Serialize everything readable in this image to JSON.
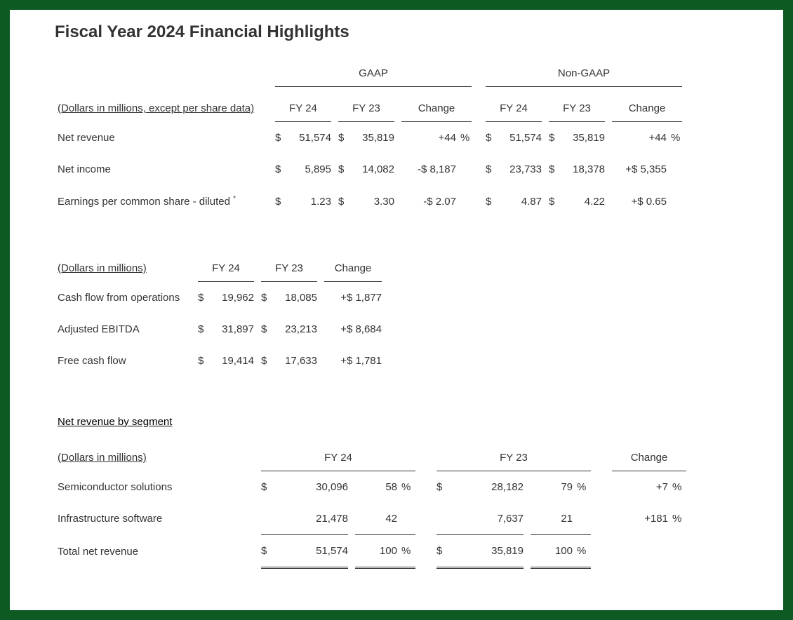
{
  "title": "Fiscal Year 2024 Financial Highlights",
  "colors": {
    "border": "#0e5a23",
    "text": "#333333",
    "rule": "#333333",
    "bg": "#ffffff"
  },
  "table1": {
    "note": "(Dollars in millions, except per share data)",
    "group_a": "GAAP",
    "group_b": "Non-GAAP",
    "cols": {
      "fy24": "FY 24",
      "fy23": "FY 23",
      "change": "Change"
    },
    "rows": [
      {
        "label": "Net revenue",
        "a": {
          "fy24": "51,574",
          "fy23": "35,819",
          "change": "+44",
          "suffix": "%"
        },
        "b": {
          "fy24": "51,574",
          "fy23": "35,819",
          "change": "+44",
          "suffix": "%"
        },
        "cur": "$"
      },
      {
        "label": "Net income",
        "a": {
          "fy24": "5,895",
          "fy23": "14,082",
          "change": "-$ 8,187",
          "suffix": ""
        },
        "b": {
          "fy24": "23,733",
          "fy23": "18,378",
          "change": "+$ 5,355",
          "suffix": ""
        },
        "cur": "$"
      },
      {
        "label": "Earnings per common share - diluted",
        "star": "*",
        "a": {
          "fy24": "1.23",
          "fy23": "3.30",
          "change": "-$ 2.07",
          "suffix": ""
        },
        "b": {
          "fy24": "4.87",
          "fy23": "4.22",
          "change": "+$ 0.65",
          "suffix": ""
        },
        "cur": "$"
      }
    ]
  },
  "table2": {
    "note": "(Dollars in millions)",
    "cols": {
      "fy24": "FY 24",
      "fy23": "FY 23",
      "change": "Change"
    },
    "rows": [
      {
        "label": "Cash flow from operations",
        "fy24": "19,962",
        "fy23": "18,085",
        "change": "+$ 1,877",
        "cur": "$"
      },
      {
        "label": "Adjusted EBITDA",
        "fy24": "31,897",
        "fy23": "23,213",
        "change": "+$ 8,684",
        "cur": "$"
      },
      {
        "label": "Free cash flow",
        "fy24": "19,414",
        "fy23": "17,633",
        "change": "+$ 1,781",
        "cur": "$"
      }
    ]
  },
  "table3": {
    "heading": "Net revenue by segment",
    "note": "(Dollars in millions)",
    "cols": {
      "fy24": "FY 24",
      "fy23": "FY 23",
      "change": "Change"
    },
    "rows": [
      {
        "label": "Semiconductor solutions",
        "fy24_cur": "$",
        "fy24_val": "30,096",
        "fy24_pct": "58",
        "fy24_sym": "%",
        "fy23_cur": "$",
        "fy23_val": "28,182",
        "fy23_pct": "79",
        "fy23_sym": "%",
        "change": "+7",
        "chsym": "%"
      },
      {
        "label": "Infrastructure software",
        "fy24_cur": "",
        "fy24_val": "21,478",
        "fy24_pct": "42",
        "fy24_sym": "",
        "fy23_cur": "",
        "fy23_val": "7,637",
        "fy23_pct": "21",
        "fy23_sym": "",
        "change": "+181",
        "chsym": "%"
      },
      {
        "label": "Total net revenue",
        "fy24_cur": "$",
        "fy24_val": "51,574",
        "fy24_pct": "100",
        "fy24_sym": "%",
        "fy23_cur": "$",
        "fy23_val": "35,819",
        "fy23_pct": "100",
        "fy23_sym": "%",
        "change": "",
        "chsym": "",
        "total": true
      }
    ]
  }
}
